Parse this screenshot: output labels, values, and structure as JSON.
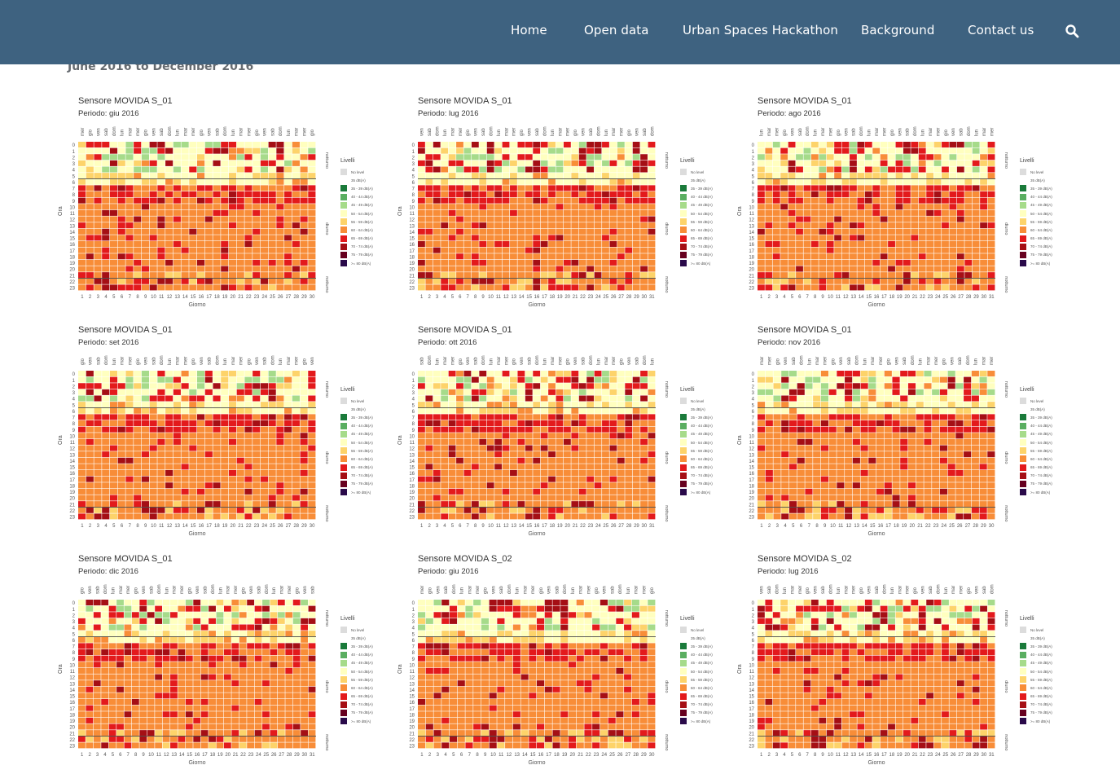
{
  "nav": {
    "items": [
      "Home",
      "Open data",
      "Urban Spaces Hackathon",
      "Background",
      "Contact us"
    ],
    "search_icon": "search-icon"
  },
  "page": {
    "subtitle": "June 2016 to December 2016"
  },
  "colors": {
    "navbar": "#3e6280",
    "levels": [
      "#dcdcdc",
      "#ffffff",
      "#1a7a3a",
      "#5aae61",
      "#a6db8a",
      "#ffffbf",
      "#fdd36a",
      "#f88d38",
      "#e31a1c",
      "#a50f15",
      "#67001f",
      "#2a0a4a"
    ]
  },
  "heatmap_labels": {
    "y_axis": "Ora",
    "x_axis": "Giorno",
    "legend_title": "Livelli",
    "band_labels": [
      "notturno",
      "diurno",
      "notturno"
    ],
    "hours": [
      "0",
      "1",
      "2",
      "3",
      "4",
      "5",
      "6",
      "7",
      "8",
      "9",
      "10",
      "11",
      "12",
      "13",
      "14",
      "15",
      "16",
      "17",
      "18",
      "19",
      "20",
      "21",
      "22",
      "23"
    ],
    "legend_items": [
      "No level",
      "35 dB(A)",
      "35 - 39 dB(A)",
      "40 - 44 dB(A)",
      "45 - 49 dB(A)",
      "50 - 54 dB(A)",
      "55 - 59 dB(A)",
      "60 - 64 dB(A)",
      "65 - 69 dB(A)",
      "70 - 74 dB(A)",
      "75 - 79 dB(A)",
      ">= 80 dB(A)"
    ]
  },
  "panels": [
    {
      "sensor": "Sensore MOVIDA S_01",
      "period": "Periodo: giu 2016",
      "days": 30,
      "weekdays": [
        "mer",
        "gio",
        "ven",
        "sab",
        "dom",
        "lun",
        "mar",
        "mer",
        "gio",
        "ven",
        "sab",
        "dom",
        "lun",
        "mar",
        "mer",
        "gio",
        "ven",
        "sab",
        "dom",
        "lun",
        "mar",
        "mer",
        "gio",
        "ven",
        "sab",
        "dom",
        "lun",
        "mar",
        "mer",
        "gio"
      ]
    },
    {
      "sensor": "Sensore MOVIDA S_01",
      "period": "Periodo: lug 2016",
      "days": 31,
      "weekdays": [
        "ven",
        "sab",
        "dom",
        "lun",
        "mar",
        "mer",
        "gio",
        "ven",
        "sab",
        "dom",
        "lun",
        "mar",
        "mer",
        "gio",
        "ven",
        "sab",
        "dom",
        "lun",
        "mar",
        "mer",
        "gio",
        "ven",
        "sab",
        "dom",
        "lun",
        "mar",
        "mer",
        "gio",
        "ven",
        "sab",
        "dom"
      ]
    },
    {
      "sensor": "Sensore MOVIDA S_01",
      "period": "Periodo: ago 2016",
      "days": 31,
      "weekdays": [
        "lun",
        "mar",
        "mer",
        "gio",
        "ven",
        "sab",
        "dom",
        "lun",
        "mar",
        "mer",
        "gio",
        "ven",
        "sab",
        "dom",
        "lun",
        "mar",
        "mer",
        "gio",
        "ven",
        "sab",
        "dom",
        "lun",
        "mar",
        "mer",
        "gio",
        "ven",
        "sab",
        "dom",
        "lun",
        "mar",
        "mer"
      ]
    },
    {
      "sensor": "Sensore MOVIDA S_01",
      "period": "Periodo: set 2016",
      "days": 30,
      "weekdays": [
        "gio",
        "ven",
        "sab",
        "dom",
        "lun",
        "mar",
        "mer",
        "gio",
        "ven",
        "sab",
        "dom",
        "lun",
        "mar",
        "mer",
        "gio",
        "ven",
        "sab",
        "dom",
        "lun",
        "mar",
        "mer",
        "gio",
        "ven",
        "sab",
        "dom",
        "lun",
        "mar",
        "mer",
        "gio",
        "ven"
      ]
    },
    {
      "sensor": "Sensore MOVIDA S_01",
      "period": "Periodo: ott 2016",
      "days": 31,
      "weekdays": [
        "sab",
        "dom",
        "lun",
        "mar",
        "mer",
        "gio",
        "ven",
        "sab",
        "dom",
        "lun",
        "mar",
        "mer",
        "gio",
        "ven",
        "sab",
        "dom",
        "lun",
        "mar",
        "mer",
        "gio",
        "ven",
        "sab",
        "dom",
        "lun",
        "mar",
        "mer",
        "gio",
        "ven",
        "sab",
        "dom",
        "lun"
      ]
    },
    {
      "sensor": "Sensore MOVIDA S_01",
      "period": "Periodo: nov 2016",
      "days": 30,
      "weekdays": [
        "mar",
        "mer",
        "gio",
        "ven",
        "sab",
        "dom",
        "lun",
        "mar",
        "mer",
        "gio",
        "ven",
        "sab",
        "dom",
        "lun",
        "mar",
        "mer",
        "gio",
        "ven",
        "sab",
        "dom",
        "lun",
        "mar",
        "mer",
        "gio",
        "ven",
        "sab",
        "dom",
        "lun",
        "mar",
        "mer"
      ]
    },
    {
      "sensor": "Sensore MOVIDA S_01",
      "period": "Periodo: dic 2016",
      "days": 31,
      "weekdays": [
        "gio",
        "ven",
        "sab",
        "dom",
        "lun",
        "mar",
        "mer",
        "gio",
        "ven",
        "sab",
        "dom",
        "lun",
        "mar",
        "mer",
        "gio",
        "ven",
        "sab",
        "dom",
        "lun",
        "mar",
        "mer",
        "gio",
        "ven",
        "sab",
        "dom",
        "lun",
        "mar",
        "mer",
        "gio",
        "ven",
        "sab"
      ]
    },
    {
      "sensor": "Sensore MOVIDA S_02",
      "period": "Periodo: giu 2016",
      "days": 30,
      "weekdays": [
        "mer",
        "gio",
        "ven",
        "sab",
        "dom",
        "lun",
        "mar",
        "mer",
        "gio",
        "ven",
        "sab",
        "dom",
        "lun",
        "mar",
        "mer",
        "gio",
        "ven",
        "sab",
        "dom",
        "lun",
        "mar",
        "mer",
        "gio",
        "ven",
        "sab",
        "dom",
        "lun",
        "mar",
        "mer",
        "gio"
      ]
    },
    {
      "sensor": "Sensore MOVIDA S_02",
      "period": "Periodo: lug 2016",
      "days": 31,
      "weekdays": [
        "ven",
        "sab",
        "dom",
        "lun",
        "mar",
        "mer",
        "gio",
        "ven",
        "sab",
        "dom",
        "lun",
        "mar",
        "mer",
        "gio",
        "ven",
        "sab",
        "dom",
        "lun",
        "mar",
        "mer",
        "gio",
        "ven",
        "sab",
        "dom",
        "lun",
        "mar",
        "mer",
        "gio",
        "ven",
        "sab",
        "dom"
      ]
    }
  ]
}
